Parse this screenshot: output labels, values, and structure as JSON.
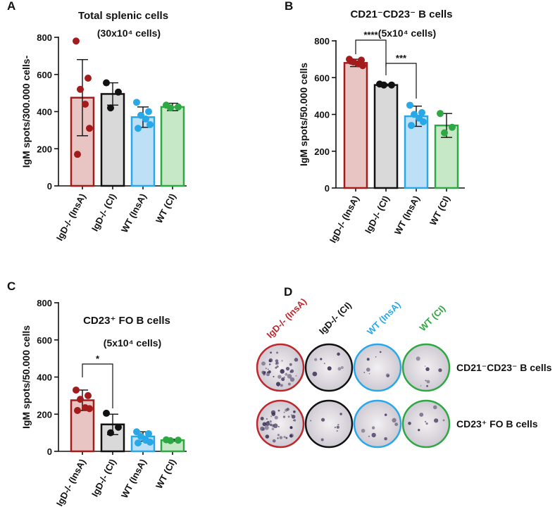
{
  "chart_data": [
    {
      "type": "bar",
      "panel": "A",
      "title": "Total splenic cells",
      "subtitle": "(30x10⁴ cells)",
      "y_label": "IgM spots/300.000 cells-",
      "categories": [
        "IgD-/- (InsA)",
        "IgD-/- (CI)",
        "WT (InsA)",
        "WT (CI)"
      ],
      "values": [
        475,
        495,
        370,
        425
      ],
      "errors": [
        205,
        60,
        55,
        20
      ],
      "points": [
        [
          780,
          580,
          520,
          440,
          310,
          170
        ],
        [
          555,
          505,
          420
        ],
        [
          450,
          400,
          380,
          360,
          330,
          310
        ],
        [
          435,
          425,
          420
        ]
      ],
      "colors": [
        "#a31c1c",
        "#111111",
        "#29a8e8",
        "#2ea843"
      ],
      "fills": [
        "#e8c4c2",
        "#d9d9d9",
        "#bde0f7",
        "#c7e8c6"
      ],
      "ylim": [
        0,
        800
      ],
      "yticks": [
        0,
        200,
        400,
        600,
        800
      ],
      "annotations": []
    },
    {
      "type": "bar",
      "panel": "B",
      "title": "CD21⁻CD23⁻ B cells",
      "subtitle": "(5x10⁴ cells)",
      "y_label": "IgM spots/50.000 cells",
      "categories": [
        "IgD-/- (InsA)",
        "IgD-/- (CI)",
        "WT (InsA)",
        "WT (CI)"
      ],
      "values": [
        680,
        560,
        390,
        340
      ],
      "errors": [
        20,
        5,
        55,
        65
      ],
      "points": [
        [
          700,
          695,
          685,
          675,
          665,
          690
        ],
        [
          565,
          560,
          560
        ],
        [
          450,
          410,
          400,
          380,
          360,
          340
        ],
        [
          405,
          330,
          300
        ]
      ],
      "colors": [
        "#a31c1c",
        "#111111",
        "#29a8e8",
        "#2ea843"
      ],
      "fills": [
        "#e8c4c2",
        "#d9d9d9",
        "#bde0f7",
        "#c7e8c6"
      ],
      "ylim": [
        0,
        800
      ],
      "yticks": [
        0,
        200,
        400,
        600,
        800
      ],
      "annotations": [
        "****",
        "***"
      ]
    },
    {
      "type": "bar",
      "panel": "C",
      "title": "CD23⁺ FO B cells",
      "subtitle": "(5x10⁴ cells)",
      "y_label": "IgM spots/50.000 cells",
      "categories": [
        "IgD-/- (InsA)",
        "IgD-/- (CI)",
        "WT (InsA)",
        "WT (CI)"
      ],
      "values": [
        275,
        145,
        80,
        60
      ],
      "errors": [
        55,
        55,
        25,
        5
      ],
      "points": [
        [
          330,
          300,
          280,
          235,
          230,
          220
        ],
        [
          205,
          130,
          100
        ],
        [
          105,
          95,
          80,
          60,
          50,
          45
        ],
        [
          62,
          60,
          58
        ]
      ],
      "colors": [
        "#a31c1c",
        "#111111",
        "#29a8e8",
        "#2ea843"
      ],
      "fills": [
        "#e8c4c2",
        "#d9d9d9",
        "#bde0f7",
        "#c7e8c6"
      ],
      "ylim": [
        0,
        800
      ],
      "yticks": [
        0,
        200,
        400,
        600,
        800
      ],
      "annotations": [
        "*"
      ]
    }
  ],
  "panel_d": {
    "panel": "D",
    "columns": [
      {
        "label": "IgD-/- (InsA)",
        "color": "#c0262b"
      },
      {
        "label": "IgD-/- (CI)",
        "color": "#111111"
      },
      {
        "label": "WT (InsA)",
        "color": "#29a8e8"
      },
      {
        "label": "WT (CI)",
        "color": "#2ea843"
      }
    ],
    "rows": [
      "CD21⁻CD23⁻ B cells",
      "CD23⁺ FO B cells"
    ]
  }
}
